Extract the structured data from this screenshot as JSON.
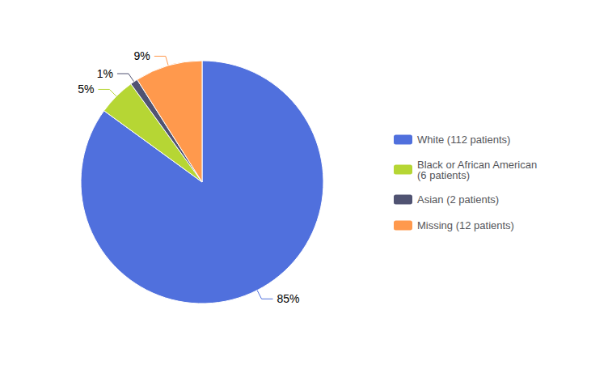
{
  "chart_data": {
    "type": "pie",
    "categories": [
      "White (112 patients)",
      "Black or African American\n(6 patients)",
      "Asian (2 patients)",
      "Missing (12 patients)"
    ],
    "values": [
      85,
      5,
      1,
      9
    ],
    "data_labels": true,
    "value_labels": [
      "85%",
      "5%",
      "1%",
      "9%"
    ],
    "legend": "right"
  }
}
